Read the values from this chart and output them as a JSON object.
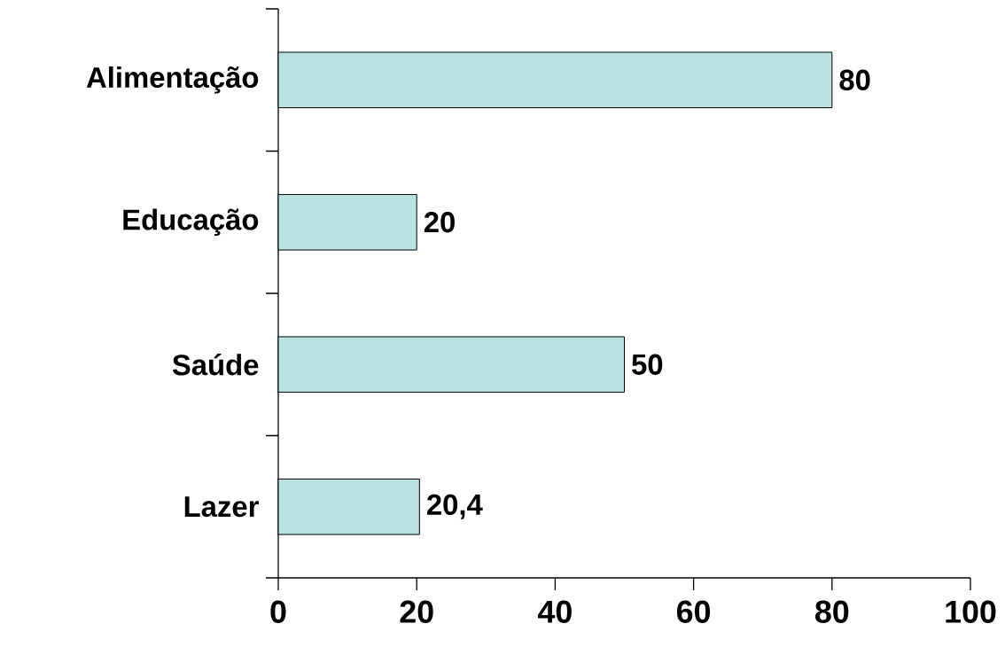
{
  "chart_data": {
    "type": "bar",
    "orientation": "horizontal",
    "categories": [
      "Alimentação",
      "Educação",
      "Saúde",
      "Lazer"
    ],
    "values": [
      80,
      20,
      50,
      20.4
    ],
    "value_labels": [
      "80",
      "20",
      "50",
      "20,4"
    ],
    "color": "#b9e1e1",
    "xlim": [
      0,
      100
    ],
    "xticks": [
      0,
      20,
      40,
      60,
      80,
      100
    ]
  }
}
